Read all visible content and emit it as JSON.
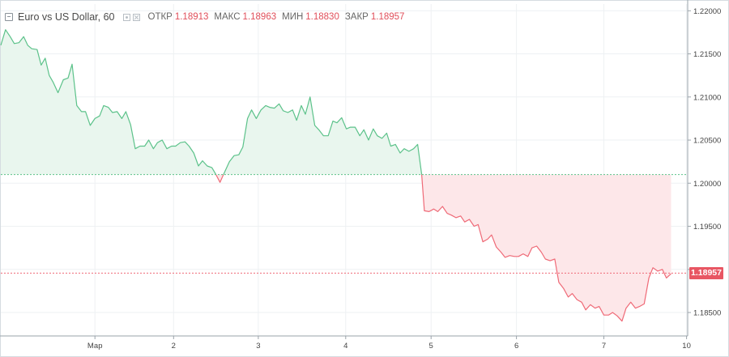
{
  "legend": {
    "symbol": "Euro vs US Dollar, 60",
    "open_label": "ОТКР",
    "open": "1.18913",
    "high_label": "МАКС",
    "high": "1.18963",
    "low_label": "МИН",
    "low": "1.18830",
    "close_label": "ЗАКР",
    "close": "1.18957"
  },
  "current_price": "1.18957",
  "colors": {
    "up": "#5cc28a",
    "down": "#ef6a77",
    "up_fill": "#e9f6ee",
    "down_fill": "#fde7e9",
    "grid": "#eef1f3"
  },
  "chart_data": {
    "type": "area",
    "baseline": 1.201,
    "ylim": [
      1.18228,
      1.22078
    ],
    "yticks": [
      "1.22000",
      "1.21500",
      "1.21000",
      "1.20500",
      "1.20000",
      "1.19500",
      "1.19000",
      "1.18500"
    ],
    "xticks": [
      {
        "label": "Мар",
        "t": 0.14
      },
      {
        "label": "2",
        "t": 0.257
      },
      {
        "label": "3",
        "t": 0.383
      },
      {
        "label": "4",
        "t": 0.513
      },
      {
        "label": "5",
        "t": 0.64
      },
      {
        "label": "6",
        "t": 0.767
      },
      {
        "label": "7",
        "t": 0.897
      },
      {
        "label": "10",
        "t": 1.02
      }
    ],
    "series": [
      {
        "values": [
          [
            0.0,
            1.216
          ],
          [
            0.007,
            1.2178
          ],
          [
            0.014,
            1.217
          ],
          [
            0.02,
            1.2162
          ],
          [
            0.027,
            1.2163
          ],
          [
            0.034,
            1.217
          ],
          [
            0.04,
            1.216
          ],
          [
            0.046,
            1.2156
          ],
          [
            0.054,
            1.2155
          ],
          [
            0.06,
            1.2137
          ],
          [
            0.066,
            1.2145
          ],
          [
            0.072,
            1.2125
          ],
          [
            0.078,
            1.2117
          ],
          [
            0.085,
            1.2105
          ],
          [
            0.093,
            1.212
          ],
          [
            0.1,
            1.2122
          ],
          [
            0.106,
            1.2138
          ],
          [
            0.113,
            1.209
          ],
          [
            0.12,
            1.2083
          ],
          [
            0.126,
            1.2083
          ],
          [
            0.133,
            1.2067
          ],
          [
            0.14,
            1.2075
          ],
          [
            0.147,
            1.2078
          ],
          [
            0.153,
            1.209
          ],
          [
            0.16,
            1.2088
          ],
          [
            0.166,
            1.2082
          ],
          [
            0.173,
            1.2083
          ],
          [
            0.18,
            1.2075
          ],
          [
            0.186,
            1.2083
          ],
          [
            0.193,
            1.2068
          ],
          [
            0.2,
            1.204
          ],
          [
            0.207,
            1.2043
          ],
          [
            0.214,
            1.2043
          ],
          [
            0.22,
            1.205
          ],
          [
            0.227,
            1.204
          ],
          [
            0.233,
            1.2047
          ],
          [
            0.24,
            1.205
          ],
          [
            0.247,
            1.204
          ],
          [
            0.254,
            1.2043
          ],
          [
            0.26,
            1.2043
          ],
          [
            0.267,
            1.2047
          ],
          [
            0.274,
            1.2048
          ],
          [
            0.28,
            1.2043
          ],
          [
            0.287,
            1.2035
          ],
          [
            0.294,
            1.202
          ],
          [
            0.3,
            1.2026
          ],
          [
            0.307,
            1.202
          ],
          [
            0.314,
            1.2018
          ],
          [
            0.32,
            1.201
          ],
          [
            0.326,
            1.2001
          ],
          [
            0.333,
            1.2013
          ],
          [
            0.34,
            1.2025
          ],
          [
            0.347,
            1.2032
          ],
          [
            0.354,
            1.2033
          ],
          [
            0.36,
            1.2042
          ],
          [
            0.367,
            1.2075
          ],
          [
            0.373,
            1.2085
          ],
          [
            0.38,
            1.2075
          ],
          [
            0.387,
            1.2085
          ],
          [
            0.394,
            1.209
          ],
          [
            0.4,
            1.2088
          ],
          [
            0.407,
            1.2087
          ],
          [
            0.414,
            1.2092
          ],
          [
            0.42,
            1.2084
          ],
          [
            0.427,
            1.2082
          ],
          [
            0.434,
            1.2085
          ],
          [
            0.44,
            1.2073
          ],
          [
            0.447,
            1.209
          ],
          [
            0.453,
            1.208
          ],
          [
            0.46,
            1.21
          ],
          [
            0.467,
            1.2067
          ],
          [
            0.473,
            1.2062
          ],
          [
            0.48,
            1.2055
          ],
          [
            0.487,
            1.2055
          ],
          [
            0.494,
            1.2072
          ],
          [
            0.5,
            1.207
          ],
          [
            0.507,
            1.2076
          ],
          [
            0.514,
            1.2063
          ],
          [
            0.52,
            1.2065
          ],
          [
            0.527,
            1.2065
          ],
          [
            0.534,
            1.2055
          ],
          [
            0.54,
            1.2062
          ],
          [
            0.547,
            1.205
          ],
          [
            0.554,
            1.2063
          ],
          [
            0.56,
            1.2055
          ],
          [
            0.567,
            1.2052
          ],
          [
            0.574,
            1.2058
          ],
          [
            0.58,
            1.2043
          ],
          [
            0.587,
            1.2045
          ],
          [
            0.594,
            1.2035
          ],
          [
            0.6,
            1.204
          ],
          [
            0.607,
            1.2037
          ],
          [
            0.614,
            1.204
          ],
          [
            0.62,
            1.2045
          ],
          [
            0.626,
            1.201
          ],
          [
            0.63,
            1.1968
          ],
          [
            0.637,
            1.1967
          ],
          [
            0.644,
            1.197
          ],
          [
            0.65,
            1.1967
          ],
          [
            0.657,
            1.1973
          ],
          [
            0.664,
            1.1965
          ],
          [
            0.67,
            1.1963
          ],
          [
            0.677,
            1.196
          ],
          [
            0.684,
            1.1962
          ],
          [
            0.69,
            1.1955
          ],
          [
            0.697,
            1.1958
          ],
          [
            0.704,
            1.195
          ],
          [
            0.71,
            1.1952
          ],
          [
            0.717,
            1.1932
          ],
          [
            0.724,
            1.1935
          ],
          [
            0.73,
            1.194
          ],
          [
            0.737,
            1.1926
          ],
          [
            0.744,
            1.192
          ],
          [
            0.75,
            1.1914
          ],
          [
            0.757,
            1.1916
          ],
          [
            0.764,
            1.1915
          ],
          [
            0.77,
            1.1915
          ],
          [
            0.777,
            1.1918
          ],
          [
            0.784,
            1.1915
          ],
          [
            0.79,
            1.1925
          ],
          [
            0.797,
            1.1927
          ],
          [
            0.804,
            1.192
          ],
          [
            0.81,
            1.1912
          ],
          [
            0.817,
            1.191
          ],
          [
            0.824,
            1.1912
          ],
          [
            0.83,
            1.1885
          ],
          [
            0.837,
            1.1878
          ],
          [
            0.844,
            1.1868
          ],
          [
            0.85,
            1.1872
          ],
          [
            0.857,
            1.1865
          ],
          [
            0.864,
            1.1862
          ],
          [
            0.87,
            1.1853
          ],
          [
            0.877,
            1.1859
          ],
          [
            0.884,
            1.1855
          ],
          [
            0.89,
            1.1857
          ],
          [
            0.897,
            1.1847
          ],
          [
            0.904,
            1.1847
          ],
          [
            0.91,
            1.185
          ],
          [
            0.917,
            1.1846
          ],
          [
            0.924,
            1.184
          ],
          [
            0.93,
            1.1855
          ],
          [
            0.937,
            1.1862
          ],
          [
            0.944,
            1.1855
          ],
          [
            0.95,
            1.1857
          ],
          [
            0.957,
            1.186
          ],
          [
            0.964,
            1.189
          ],
          [
            0.97,
            1.1902
          ],
          [
            0.977,
            1.1898
          ],
          [
            0.984,
            1.19
          ],
          [
            0.99,
            1.189
          ],
          [
            0.997,
            1.1895
          ]
        ]
      }
    ]
  }
}
